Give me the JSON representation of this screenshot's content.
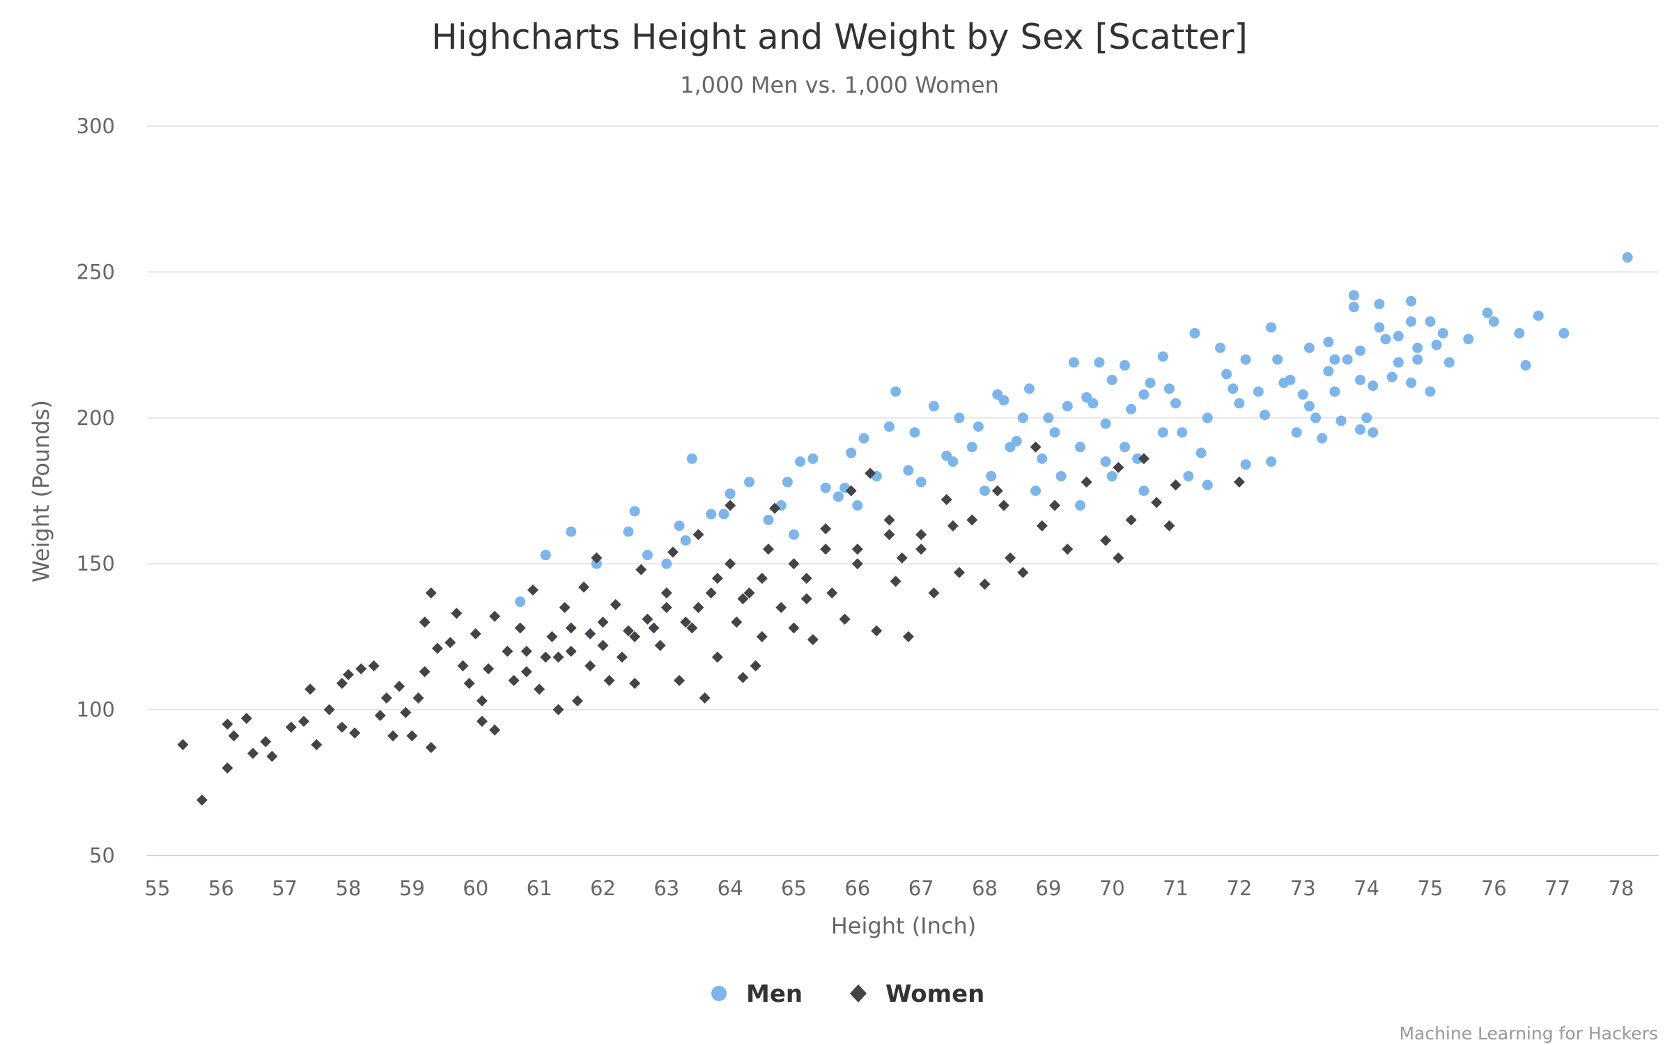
{
  "chart_data": {
    "type": "scatter",
    "title": "Highcharts Height and Weight by Sex [Scatter]",
    "subtitle": "1,000 Men vs. 1,000 Women",
    "xlabel": "Height (Inch)",
    "ylabel": "Weight (Pounds)",
    "xlim": [
      55,
      78
    ],
    "ylim": [
      50,
      300
    ],
    "xticks": [
      "55",
      "56",
      "57",
      "58",
      "59",
      "60",
      "61",
      "62",
      "63",
      "64",
      "65",
      "66",
      "67",
      "68",
      "69",
      "70",
      "71",
      "72",
      "73",
      "74",
      "75",
      "76",
      "77",
      "78"
    ],
    "yticks": [
      "50",
      "100",
      "150",
      "200",
      "250",
      "300"
    ],
    "grid": "horizontal",
    "legend_position": "bottom",
    "credits": "Machine Learning for Hackers",
    "series": [
      {
        "name": "Men",
        "color": "#7cb5ec",
        "marker": "circle",
        "points": [
          [
            78.1,
            255
          ],
          [
            77.1,
            229
          ],
          [
            76.7,
            235
          ],
          [
            76.5,
            218
          ],
          [
            76.4,
            229
          ],
          [
            76.0,
            233
          ],
          [
            75.9,
            236
          ],
          [
            75.6,
            227
          ],
          [
            75.3,
            219
          ],
          [
            75.2,
            229
          ],
          [
            75.1,
            225
          ],
          [
            75.0,
            233
          ],
          [
            75.0,
            209
          ],
          [
            74.8,
            220
          ],
          [
            74.8,
            224
          ],
          [
            74.7,
            233
          ],
          [
            74.7,
            240
          ],
          [
            74.7,
            212
          ],
          [
            74.5,
            219
          ],
          [
            74.4,
            214
          ],
          [
            74.3,
            227
          ],
          [
            74.2,
            239
          ],
          [
            74.2,
            231
          ],
          [
            74.1,
            211
          ],
          [
            73.9,
            223
          ],
          [
            73.9,
            213
          ],
          [
            73.8,
            242
          ],
          [
            73.8,
            238
          ],
          [
            73.9,
            196
          ],
          [
            74.0,
            200
          ],
          [
            74.1,
            195
          ],
          [
            73.7,
            220
          ],
          [
            73.6,
            199
          ],
          [
            73.5,
            209
          ],
          [
            73.4,
            226
          ],
          [
            73.4,
            216
          ],
          [
            73.3,
            193
          ],
          [
            73.2,
            200
          ],
          [
            73.1,
            204
          ],
          [
            73.1,
            224
          ],
          [
            73.0,
            208
          ],
          [
            72.9,
            195
          ],
          [
            72.8,
            213
          ],
          [
            72.6,
            220
          ],
          [
            72.5,
            231
          ],
          [
            72.5,
            185
          ],
          [
            72.4,
            201
          ],
          [
            72.3,
            209
          ],
          [
            72.1,
            184
          ],
          [
            72.1,
            220
          ],
          [
            71.9,
            210
          ],
          [
            71.7,
            224
          ],
          [
            71.5,
            177
          ],
          [
            71.3,
            229
          ],
          [
            71.2,
            180
          ],
          [
            71.1,
            195
          ],
          [
            71.0,
            205
          ],
          [
            70.8,
            221
          ],
          [
            70.6,
            212
          ],
          [
            70.4,
            186
          ],
          [
            70.5,
            208
          ],
          [
            70.3,
            203
          ],
          [
            70.2,
            218
          ],
          [
            70.0,
            213
          ],
          [
            69.9,
            198
          ],
          [
            69.8,
            219
          ],
          [
            69.6,
            207
          ],
          [
            69.5,
            190
          ],
          [
            69.4,
            219
          ],
          [
            69.3,
            204
          ],
          [
            69.2,
            180
          ],
          [
            69.0,
            200
          ],
          [
            68.9,
            186
          ],
          [
            68.7,
            210
          ],
          [
            68.5,
            192
          ],
          [
            68.3,
            206
          ],
          [
            68.2,
            208
          ],
          [
            68.1,
            180
          ],
          [
            67.9,
            197
          ],
          [
            67.6,
            200
          ],
          [
            67.4,
            187
          ],
          [
            67.2,
            204
          ],
          [
            67.0,
            178
          ],
          [
            66.9,
            195
          ],
          [
            66.6,
            209
          ],
          [
            66.5,
            197
          ],
          [
            66.3,
            180
          ],
          [
            66.1,
            193
          ],
          [
            65.9,
            188
          ],
          [
            65.7,
            173
          ],
          [
            65.5,
            176
          ],
          [
            65.3,
            186
          ],
          [
            65.1,
            185
          ],
          [
            64.9,
            178
          ],
          [
            64.8,
            170
          ],
          [
            64.6,
            165
          ],
          [
            64.3,
            178
          ],
          [
            64.0,
            174
          ],
          [
            63.9,
            167
          ],
          [
            63.7,
            167
          ],
          [
            63.4,
            186
          ],
          [
            63.3,
            158
          ],
          [
            63.2,
            163
          ],
          [
            62.7,
            153
          ],
          [
            62.5,
            168
          ],
          [
            62.4,
            161
          ],
          [
            61.9,
            150
          ],
          [
            61.5,
            161
          ],
          [
            61.1,
            153
          ],
          [
            60.7,
            137
          ],
          [
            63.0,
            150
          ],
          [
            65.0,
            160
          ],
          [
            66.0,
            170
          ],
          [
            67.5,
            185
          ],
          [
            68.0,
            175
          ],
          [
            68.8,
            175
          ],
          [
            69.5,
            170
          ],
          [
            70.0,
            180
          ],
          [
            70.5,
            175
          ],
          [
            71.5,
            200
          ],
          [
            72.0,
            205
          ],
          [
            70.8,
            195
          ],
          [
            69.7,
            205
          ],
          [
            68.4,
            190
          ],
          [
            67.8,
            190
          ],
          [
            66.8,
            182
          ],
          [
            65.8,
            176
          ],
          [
            71.8,
            215
          ],
          [
            72.7,
            212
          ],
          [
            70.9,
            210
          ],
          [
            69.1,
            195
          ],
          [
            68.6,
            200
          ],
          [
            70.2,
            190
          ],
          [
            71.4,
            188
          ],
          [
            69.9,
            185
          ],
          [
            73.5,
            220
          ],
          [
            74.5,
            228
          ]
        ]
      },
      {
        "name": "Women",
        "color": "#434348",
        "marker": "diamond",
        "points": [
          [
            55.4,
            88
          ],
          [
            55.7,
            69
          ],
          [
            56.1,
            80
          ],
          [
            56.1,
            95
          ],
          [
            56.2,
            91
          ],
          [
            56.4,
            97
          ],
          [
            56.5,
            85
          ],
          [
            56.7,
            89
          ],
          [
            56.8,
            84
          ],
          [
            57.1,
            94
          ],
          [
            57.3,
            96
          ],
          [
            57.4,
            107
          ],
          [
            57.5,
            88
          ],
          [
            57.7,
            100
          ],
          [
            57.9,
            109
          ],
          [
            57.9,
            94
          ],
          [
            58.0,
            112
          ],
          [
            58.1,
            92
          ],
          [
            58.2,
            114
          ],
          [
            58.4,
            115
          ],
          [
            58.5,
            98
          ],
          [
            58.6,
            104
          ],
          [
            58.7,
            91
          ],
          [
            58.8,
            108
          ],
          [
            58.9,
            99
          ],
          [
            59.0,
            91
          ],
          [
            59.1,
            104
          ],
          [
            59.2,
            130
          ],
          [
            59.2,
            113
          ],
          [
            59.3,
            140
          ],
          [
            59.3,
            87
          ],
          [
            59.4,
            121
          ],
          [
            59.6,
            123
          ],
          [
            59.7,
            133
          ],
          [
            59.8,
            115
          ],
          [
            59.9,
            109
          ],
          [
            60.0,
            126
          ],
          [
            60.1,
            103
          ],
          [
            60.1,
            96
          ],
          [
            60.2,
            114
          ],
          [
            60.3,
            132
          ],
          [
            60.3,
            93
          ],
          [
            60.5,
            120
          ],
          [
            60.6,
            110
          ],
          [
            60.7,
            128
          ],
          [
            60.8,
            113
          ],
          [
            60.9,
            141
          ],
          [
            61.0,
            107
          ],
          [
            61.1,
            118
          ],
          [
            61.2,
            125
          ],
          [
            61.3,
            100
          ],
          [
            61.4,
            135
          ],
          [
            61.5,
            128
          ],
          [
            61.6,
            103
          ],
          [
            61.7,
            142
          ],
          [
            61.8,
            115
          ],
          [
            61.9,
            152
          ],
          [
            62.0,
            122
          ],
          [
            62.1,
            110
          ],
          [
            62.2,
            136
          ],
          [
            62.4,
            127
          ],
          [
            62.5,
            109
          ],
          [
            62.6,
            148
          ],
          [
            62.7,
            131
          ],
          [
            62.9,
            122
          ],
          [
            63.0,
            135
          ],
          [
            63.1,
            154
          ],
          [
            63.2,
            110
          ],
          [
            63.4,
            128
          ],
          [
            63.5,
            160
          ],
          [
            63.6,
            104
          ],
          [
            63.7,
            140
          ],
          [
            63.8,
            118
          ],
          [
            64.0,
            150
          ],
          [
            64.0,
            170
          ],
          [
            64.1,
            130
          ],
          [
            64.2,
            111
          ],
          [
            64.3,
            140
          ],
          [
            64.4,
            115
          ],
          [
            64.5,
            125
          ],
          [
            64.6,
            155
          ],
          [
            64.7,
            169
          ],
          [
            64.8,
            135
          ],
          [
            65.0,
            128
          ],
          [
            65.2,
            145
          ],
          [
            65.3,
            124
          ],
          [
            65.5,
            162
          ],
          [
            65.6,
            140
          ],
          [
            65.8,
            131
          ],
          [
            65.9,
            175
          ],
          [
            66.0,
            150
          ],
          [
            66.2,
            181
          ],
          [
            66.3,
            127
          ],
          [
            66.5,
            165
          ],
          [
            66.6,
            144
          ],
          [
            66.8,
            125
          ],
          [
            67.0,
            160
          ],
          [
            67.2,
            140
          ],
          [
            67.4,
            172
          ],
          [
            67.6,
            147
          ],
          [
            67.8,
            165
          ],
          [
            68.0,
            143
          ],
          [
            68.2,
            175
          ],
          [
            68.4,
            152
          ],
          [
            68.6,
            147
          ],
          [
            68.8,
            190
          ],
          [
            68.9,
            163
          ],
          [
            69.1,
            170
          ],
          [
            69.3,
            155
          ],
          [
            69.6,
            178
          ],
          [
            69.9,
            158
          ],
          [
            70.1,
            183
          ],
          [
            70.1,
            152
          ],
          [
            70.3,
            165
          ],
          [
            70.5,
            186
          ],
          [
            70.7,
            171
          ],
          [
            70.9,
            163
          ],
          [
            71.0,
            177
          ],
          [
            72.0,
            178
          ],
          [
            61.5,
            120
          ],
          [
            62.0,
            130
          ],
          [
            62.5,
            125
          ],
          [
            63.0,
            140
          ],
          [
            63.5,
            135
          ],
          [
            64.5,
            145
          ],
          [
            65.0,
            150
          ],
          [
            65.5,
            155
          ],
          [
            66.0,
            155
          ],
          [
            66.5,
            160
          ],
          [
            67.0,
            155
          ],
          [
            63.3,
            130
          ],
          [
            62.8,
            128
          ],
          [
            64.2,
            138
          ],
          [
            60.8,
            120
          ],
          [
            61.3,
            118
          ],
          [
            61.8,
            126
          ],
          [
            62.3,
            118
          ],
          [
            63.8,
            145
          ],
          [
            65.2,
            138
          ],
          [
            66.7,
            152
          ],
          [
            67.5,
            163
          ],
          [
            68.3,
            170
          ]
        ]
      }
    ]
  }
}
